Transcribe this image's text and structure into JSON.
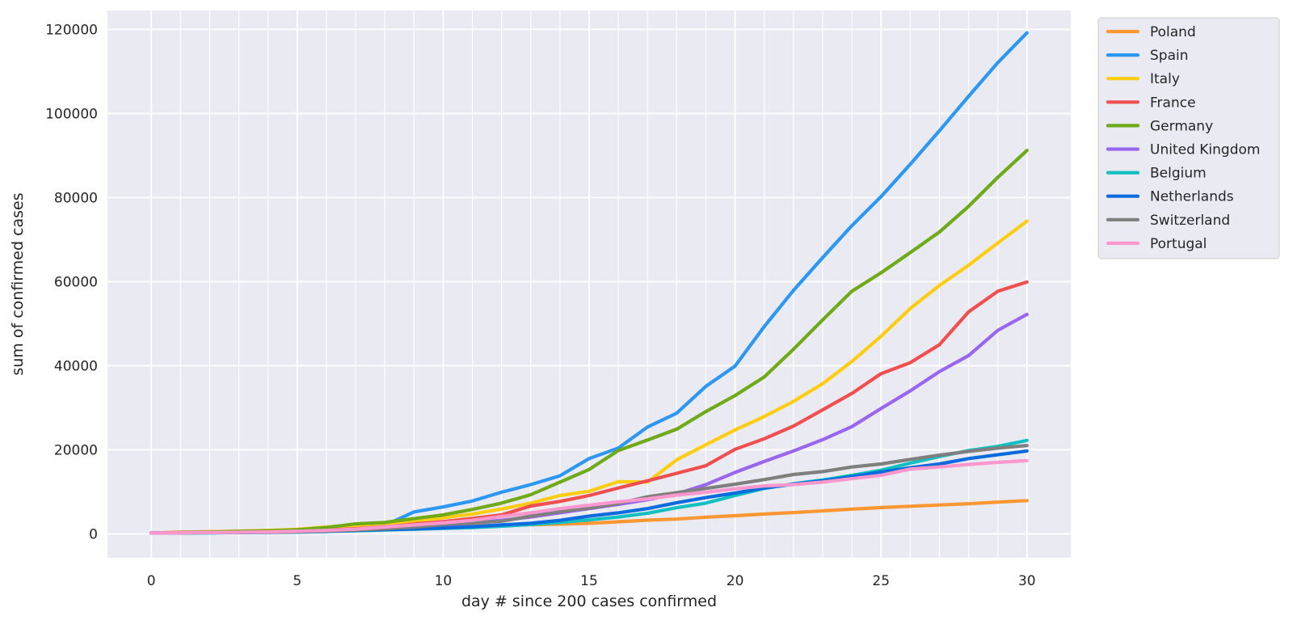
{
  "chart_data": {
    "type": "line",
    "title": "",
    "xlabel": "day # since 200 cases confirmed",
    "ylabel": "sum of confirmed cases",
    "xlim": [
      -1.5,
      31.5
    ],
    "ylim": [
      -5700,
      124500
    ],
    "x_ticks": [
      0,
      5,
      10,
      15,
      20,
      25,
      30
    ],
    "y_ticks": [
      0,
      20000,
      40000,
      60000,
      80000,
      100000,
      120000
    ],
    "grid": true,
    "legend_position": "outside top-right",
    "x": [
      0,
      1,
      2,
      3,
      4,
      5,
      6,
      7,
      8,
      9,
      10,
      11,
      12,
      13,
      14,
      15,
      16,
      17,
      18,
      19,
      20,
      21,
      22,
      23,
      24,
      25,
      26,
      27,
      28,
      29,
      30
    ],
    "series": [
      {
        "name": "Poland",
        "color": "#fb9834",
        "values": [
          200,
          400,
          500,
          650,
          800,
          1000,
          1200,
          1350,
          1500,
          1600,
          1750,
          1900,
          2000,
          2150,
          2300,
          2500,
          2850,
          3250,
          3500,
          3950,
          4300,
          4700,
          5050,
          5450,
          5850,
          6250,
          6550,
          6850,
          7150,
          7550,
          7900
        ]
      },
      {
        "name": "Spain",
        "color": "#2d97f4",
        "values": [
          200,
          250,
          300,
          350,
          400,
          500,
          650,
          1000,
          2000,
          5200,
          6400,
          7800,
          9900,
          11700,
          13800,
          17900,
          20400,
          25400,
          28700,
          35100,
          39900,
          49300,
          57900,
          65700,
          73300,
          80200,
          87900,
          95900,
          104100,
          112100,
          119200
        ]
      },
      {
        "name": "Italy",
        "color": "#fecd10",
        "values": [
          200,
          300,
          450,
          600,
          800,
          1050,
          1600,
          2000,
          2500,
          3000,
          3800,
          4700,
          5900,
          7300,
          9100,
          10100,
          12400,
          12300,
          17600,
          21200,
          24700,
          27900,
          31500,
          35700,
          41000,
          47000,
          53600,
          59100,
          63900,
          69200,
          74400
        ]
      },
      {
        "name": "France",
        "color": "#f14f4f",
        "values": [
          200,
          300,
          350,
          400,
          550,
          700,
          900,
          1200,
          1650,
          2300,
          2900,
          3650,
          4500,
          6600,
          7700,
          9100,
          10900,
          12600,
          14400,
          16200,
          20100,
          22600,
          25600,
          29500,
          33400,
          38100,
          40700,
          45000,
          52800,
          57700,
          59900
        ]
      },
      {
        "name": "Germany",
        "color": "#6faa18",
        "values": [
          200,
          300,
          400,
          550,
          700,
          950,
          1500,
          2350,
          2700,
          3600,
          4500,
          5800,
          7300,
          9300,
          12300,
          15300,
          19800,
          22300,
          24900,
          29100,
          32900,
          37300,
          43900,
          50900,
          57700,
          62100,
          66900,
          71800,
          77900,
          84800,
          91200
        ]
      },
      {
        "name": "United Kingdom",
        "color": "#9966f0",
        "values": [
          200,
          250,
          300,
          350,
          400,
          450,
          550,
          800,
          1100,
          1500,
          2000,
          2600,
          3200,
          4000,
          5000,
          6000,
          7000,
          8100,
          9500,
          11700,
          14600,
          17200,
          19700,
          22400,
          25500,
          29800,
          34000,
          38600,
          42400,
          48400,
          52200
        ]
      },
      {
        "name": "Belgium",
        "color": "#12c0c0",
        "values": [
          200,
          250,
          250,
          300,
          320,
          400,
          550,
          700,
          900,
          1100,
          1300,
          1500,
          1800,
          2200,
          2700,
          3300,
          4000,
          4900,
          6200,
          7300,
          9100,
          10800,
          11900,
          12800,
          13900,
          15100,
          16800,
          18400,
          19800,
          20800,
          22200
        ]
      },
      {
        "name": "Netherlands",
        "color": "#0c6bde",
        "values": [
          200,
          250,
          270,
          300,
          350,
          450,
          600,
          800,
          1000,
          1150,
          1400,
          1700,
          2100,
          2500,
          3200,
          4200,
          5000,
          6000,
          7400,
          8600,
          9700,
          10900,
          11800,
          12600,
          13600,
          14700,
          15700,
          16600,
          17900,
          18800,
          19700
        ]
      },
      {
        "name": "Switzerland",
        "color": "#7f7f7f",
        "values": [
          200,
          250,
          300,
          320,
          380,
          480,
          650,
          900,
          1200,
          1600,
          2200,
          2600,
          3000,
          4200,
          5300,
          6100,
          7200,
          8800,
          9800,
          10800,
          11800,
          12900,
          14100,
          14800,
          15900,
          16600,
          17700,
          18700,
          19600,
          20400,
          21000
        ]
      },
      {
        "name": "Portugal",
        "color": "#fe97cd",
        "values": [
          200,
          250,
          300,
          350,
          450,
          600,
          800,
          1100,
          1600,
          2100,
          2600,
          3200,
          4100,
          5000,
          6000,
          6800,
          7600,
          8300,
          9200,
          9900,
          10700,
          11400,
          11700,
          12300,
          13100,
          13900,
          15400,
          15900,
          16500,
          17000,
          17400
        ]
      }
    ]
  }
}
